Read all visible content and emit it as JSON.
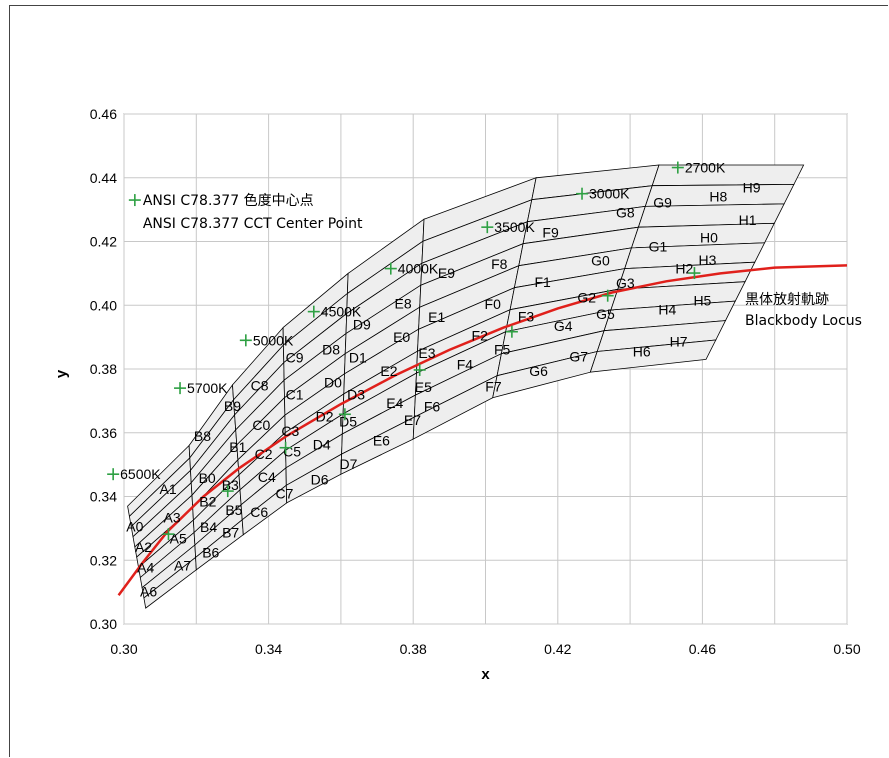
{
  "chart_data": {
    "type": "scatter",
    "xlabel": "x",
    "ylabel": "y",
    "xlim": [
      0.3,
      0.5
    ],
    "ylim": [
      0.3,
      0.46
    ],
    "xticks": [
      "0.30",
      "0.34",
      "0.38",
      "0.42",
      "0.46",
      "0.50"
    ],
    "yticks": [
      "0.30",
      "0.32",
      "0.34",
      "0.36",
      "0.38",
      "0.40",
      "0.42",
      "0.44",
      "0.46"
    ],
    "grid": true,
    "colors": {
      "locus": "#e0201b",
      "center": "#2ea043",
      "bin_fill": "#eeeeee",
      "bin_stroke": "#000000"
    },
    "cct_points": [
      {
        "label": "6500K",
        "x": 0.3123,
        "y": 0.3282
      },
      {
        "label": "5700K",
        "x": 0.3287,
        "y": 0.3417
      },
      {
        "label": "5000K",
        "x": 0.3447,
        "y": 0.3553
      },
      {
        "label": "4500K",
        "x": 0.3611,
        "y": 0.3658
      },
      {
        "label": "4000K",
        "x": 0.3818,
        "y": 0.3797
      },
      {
        "label": "3500K",
        "x": 0.4073,
        "y": 0.3917
      },
      {
        "label": "3000K",
        "x": 0.4338,
        "y": 0.403
      },
      {
        "label": "2700K",
        "x": 0.4578,
        "y": 0.4101
      }
    ],
    "legend_marker_label": "ANSI C78.377 色度中心点",
    "legend_marker_label_en": "ANSI C78.377 CCT Center Point",
    "locus_label": "黒体放射軌跡",
    "locus_label_en": "Blackbody Locus",
    "bins": [
      {
        "name": "A0",
        "x": 0.303,
        "y": 0.329
      },
      {
        "name": "A1",
        "x": 0.3122,
        "y": 0.3408
      },
      {
        "name": "A2",
        "x": 0.3054,
        "y": 0.3226
      },
      {
        "name": "A3",
        "x": 0.3133,
        "y": 0.3319
      },
      {
        "name": "A4",
        "x": 0.306,
        "y": 0.3162
      },
      {
        "name": "A5",
        "x": 0.315,
        "y": 0.3252
      },
      {
        "name": "A6",
        "x": 0.3068,
        "y": 0.3087
      },
      {
        "name": "A7",
        "x": 0.3162,
        "y": 0.3168
      },
      {
        "name": "B0",
        "x": 0.323,
        "y": 0.3442
      },
      {
        "name": "B2",
        "x": 0.3232,
        "y": 0.3368
      },
      {
        "name": "B3",
        "x": 0.3294,
        "y": 0.3421
      },
      {
        "name": "B4",
        "x": 0.3234,
        "y": 0.3289
      },
      {
        "name": "B5",
        "x": 0.3304,
        "y": 0.3342
      },
      {
        "name": "B6",
        "x": 0.324,
        "y": 0.3209
      },
      {
        "name": "B7",
        "x": 0.3295,
        "y": 0.3272
      },
      {
        "name": "B8",
        "x": 0.3217,
        "y": 0.3574
      },
      {
        "name": "B9",
        "x": 0.33,
        "y": 0.3668
      },
      {
        "name": "B1",
        "x": 0.3315,
        "y": 0.354
      },
      {
        "name": "C8",
        "x": 0.3375,
        "y": 0.3732
      },
      {
        "name": "C9",
        "x": 0.3472,
        "y": 0.382
      },
      {
        "name": "C0",
        "x": 0.338,
        "y": 0.3609
      },
      {
        "name": "C1",
        "x": 0.3472,
        "y": 0.3705
      },
      {
        "name": "C2",
        "x": 0.3386,
        "y": 0.3517
      },
      {
        "name": "C3",
        "x": 0.346,
        "y": 0.359
      },
      {
        "name": "C4",
        "x": 0.3395,
        "y": 0.3445
      },
      {
        "name": "C5",
        "x": 0.3465,
        "y": 0.3525
      },
      {
        "name": "C6",
        "x": 0.3374,
        "y": 0.3335
      },
      {
        "name": "C7",
        "x": 0.3444,
        "y": 0.3393
      },
      {
        "name": "D8",
        "x": 0.3573,
        "y": 0.3845
      },
      {
        "name": "D9",
        "x": 0.3658,
        "y": 0.3924
      },
      {
        "name": "D0",
        "x": 0.3578,
        "y": 0.3742
      },
      {
        "name": "D1",
        "x": 0.3647,
        "y": 0.3821
      },
      {
        "name": "D2",
        "x": 0.3555,
        "y": 0.3636
      },
      {
        "name": "D3",
        "x": 0.3642,
        "y": 0.3704
      },
      {
        "name": "D4",
        "x": 0.3547,
        "y": 0.3547
      },
      {
        "name": "D5",
        "x": 0.362,
        "y": 0.3619
      },
      {
        "name": "D6",
        "x": 0.3541,
        "y": 0.3438
      },
      {
        "name": "D7",
        "x": 0.3621,
        "y": 0.3486
      },
      {
        "name": "E8",
        "x": 0.3772,
        "y": 0.399
      },
      {
        "name": "E9",
        "x": 0.3892,
        "y": 0.4085
      },
      {
        "name": "E0",
        "x": 0.3768,
        "y": 0.3884
      },
      {
        "name": "E1",
        "x": 0.3865,
        "y": 0.3948
      },
      {
        "name": "E2",
        "x": 0.3733,
        "y": 0.3778
      },
      {
        "name": "E3",
        "x": 0.3838,
        "y": 0.3834
      },
      {
        "name": "E4",
        "x": 0.3749,
        "y": 0.3677
      },
      {
        "name": "E5",
        "x": 0.3828,
        "y": 0.3728
      },
      {
        "name": "E6",
        "x": 0.3712,
        "y": 0.356
      },
      {
        "name": "E7",
        "x": 0.3798,
        "y": 0.3624
      },
      {
        "name": "F8",
        "x": 0.4038,
        "y": 0.4113
      },
      {
        "name": "F9",
        "x": 0.418,
        "y": 0.4213
      },
      {
        "name": "F0",
        "x": 0.402,
        "y": 0.3988
      },
      {
        "name": "F1",
        "x": 0.4158,
        "y": 0.4057
      },
      {
        "name": "F2",
        "x": 0.3984,
        "y": 0.389
      },
      {
        "name": "F3",
        "x": 0.4112,
        "y": 0.3949
      },
      {
        "name": "F4",
        "x": 0.3943,
        "y": 0.3798
      },
      {
        "name": "F5",
        "x": 0.4046,
        "y": 0.3845
      },
      {
        "name": "F6",
        "x": 0.3852,
        "y": 0.3666
      },
      {
        "name": "F7",
        "x": 0.4022,
        "y": 0.3729
      },
      {
        "name": "G8",
        "x": 0.4387,
        "y": 0.4275
      },
      {
        "name": "G9",
        "x": 0.449,
        "y": 0.4306
      },
      {
        "name": "G0",
        "x": 0.4318,
        "y": 0.4125
      },
      {
        "name": "G1",
        "x": 0.4477,
        "y": 0.4168
      },
      {
        "name": "G2",
        "x": 0.428,
        "y": 0.4008
      },
      {
        "name": "G3",
        "x": 0.4387,
        "y": 0.4054
      },
      {
        "name": "G4",
        "x": 0.4215,
        "y": 0.392
      },
      {
        "name": "G5",
        "x": 0.4332,
        "y": 0.3957
      },
      {
        "name": "G6",
        "x": 0.4147,
        "y": 0.3778
      },
      {
        "name": "G7",
        "x": 0.4258,
        "y": 0.3824
      },
      {
        "name": "H8",
        "x": 0.4644,
        "y": 0.4325
      },
      {
        "name": "H9",
        "x": 0.4736,
        "y": 0.4354
      },
      {
        "name": "H0",
        "x": 0.4618,
        "y": 0.4197
      },
      {
        "name": "H1",
        "x": 0.4725,
        "y": 0.4251
      },
      {
        "name": "H2",
        "x": 0.455,
        "y": 0.41
      },
      {
        "name": "H3",
        "x": 0.4614,
        "y": 0.4127
      },
      {
        "name": "H4",
        "x": 0.4503,
        "y": 0.3971
      },
      {
        "name": "H5",
        "x": 0.46,
        "y": 0.4
      },
      {
        "name": "H6",
        "x": 0.4432,
        "y": 0.384
      },
      {
        "name": "H7",
        "x": 0.4534,
        "y": 0.3871
      }
    ]
  }
}
